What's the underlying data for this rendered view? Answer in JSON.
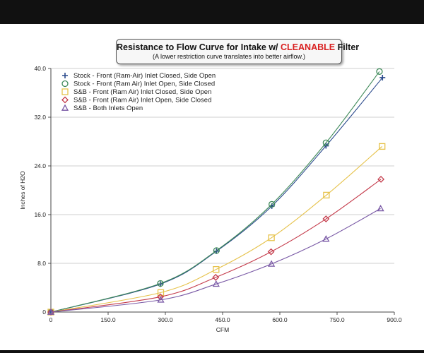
{
  "chart_data": {
    "type": "line",
    "title": "Resistance to Flow Curve for Intake w/",
    "title_highlight": "CLEANABLE",
    "title_suffix": "Filter",
    "subtitle": "(A lower restriction curve translates into better airflow.)",
    "xlabel": "CFM",
    "ylabel": "Inches of H2O",
    "xlim": [
      0,
      900
    ],
    "ylim": [
      0,
      40
    ],
    "xticks": [
      "0",
      "150.0",
      "300.0",
      "450.0",
      "600.0",
      "750.0",
      "900.0"
    ],
    "yticks": [
      "0",
      "8.0",
      "16.0",
      "24.0",
      "32.0",
      "40.0"
    ],
    "grid": "horizontal",
    "legend_position": "top-left",
    "series": [
      {
        "name": "Stock - Front (Ram-Air) Inlet Closed, Side Open",
        "marker": "plus",
        "color": "#2b4a8c",
        "x": [
          0,
          287,
          434,
          579,
          721,
          869
        ],
        "y": [
          0,
          4.6,
          10.0,
          17.4,
          27.3,
          38.5
        ]
      },
      {
        "name": "Stock - Front (Ram Air) Inlet Open, Side Closed",
        "marker": "circle",
        "color": "#3f8a5a",
        "x": [
          0,
          287,
          434,
          579,
          721,
          861
        ],
        "y": [
          0,
          4.7,
          10.1,
          17.7,
          27.8,
          39.5
        ]
      },
      {
        "name": "S&B - Front (Ram Air) Inlet Closed, Side Open",
        "marker": "square",
        "color": "#e6c24a",
        "x": [
          0,
          288,
          433,
          578,
          722,
          868
        ],
        "y": [
          0,
          3.2,
          7.0,
          12.2,
          19.2,
          27.2
        ]
      },
      {
        "name": "S&B - Front (Ram Air) Inlet Open, Side Closed",
        "marker": "diamond",
        "color": "#c43a4a",
        "x": [
          0,
          287,
          432,
          577,
          721,
          865
        ],
        "y": [
          0,
          2.5,
          5.7,
          9.9,
          15.3,
          21.8
        ]
      },
      {
        "name": "S&B - Both Inlets Open",
        "marker": "triangle",
        "color": "#7a5aa6",
        "x": [
          0,
          288,
          433,
          578,
          721,
          864
        ],
        "y": [
          0,
          2.0,
          4.6,
          7.9,
          12.0,
          17.0
        ]
      }
    ]
  }
}
